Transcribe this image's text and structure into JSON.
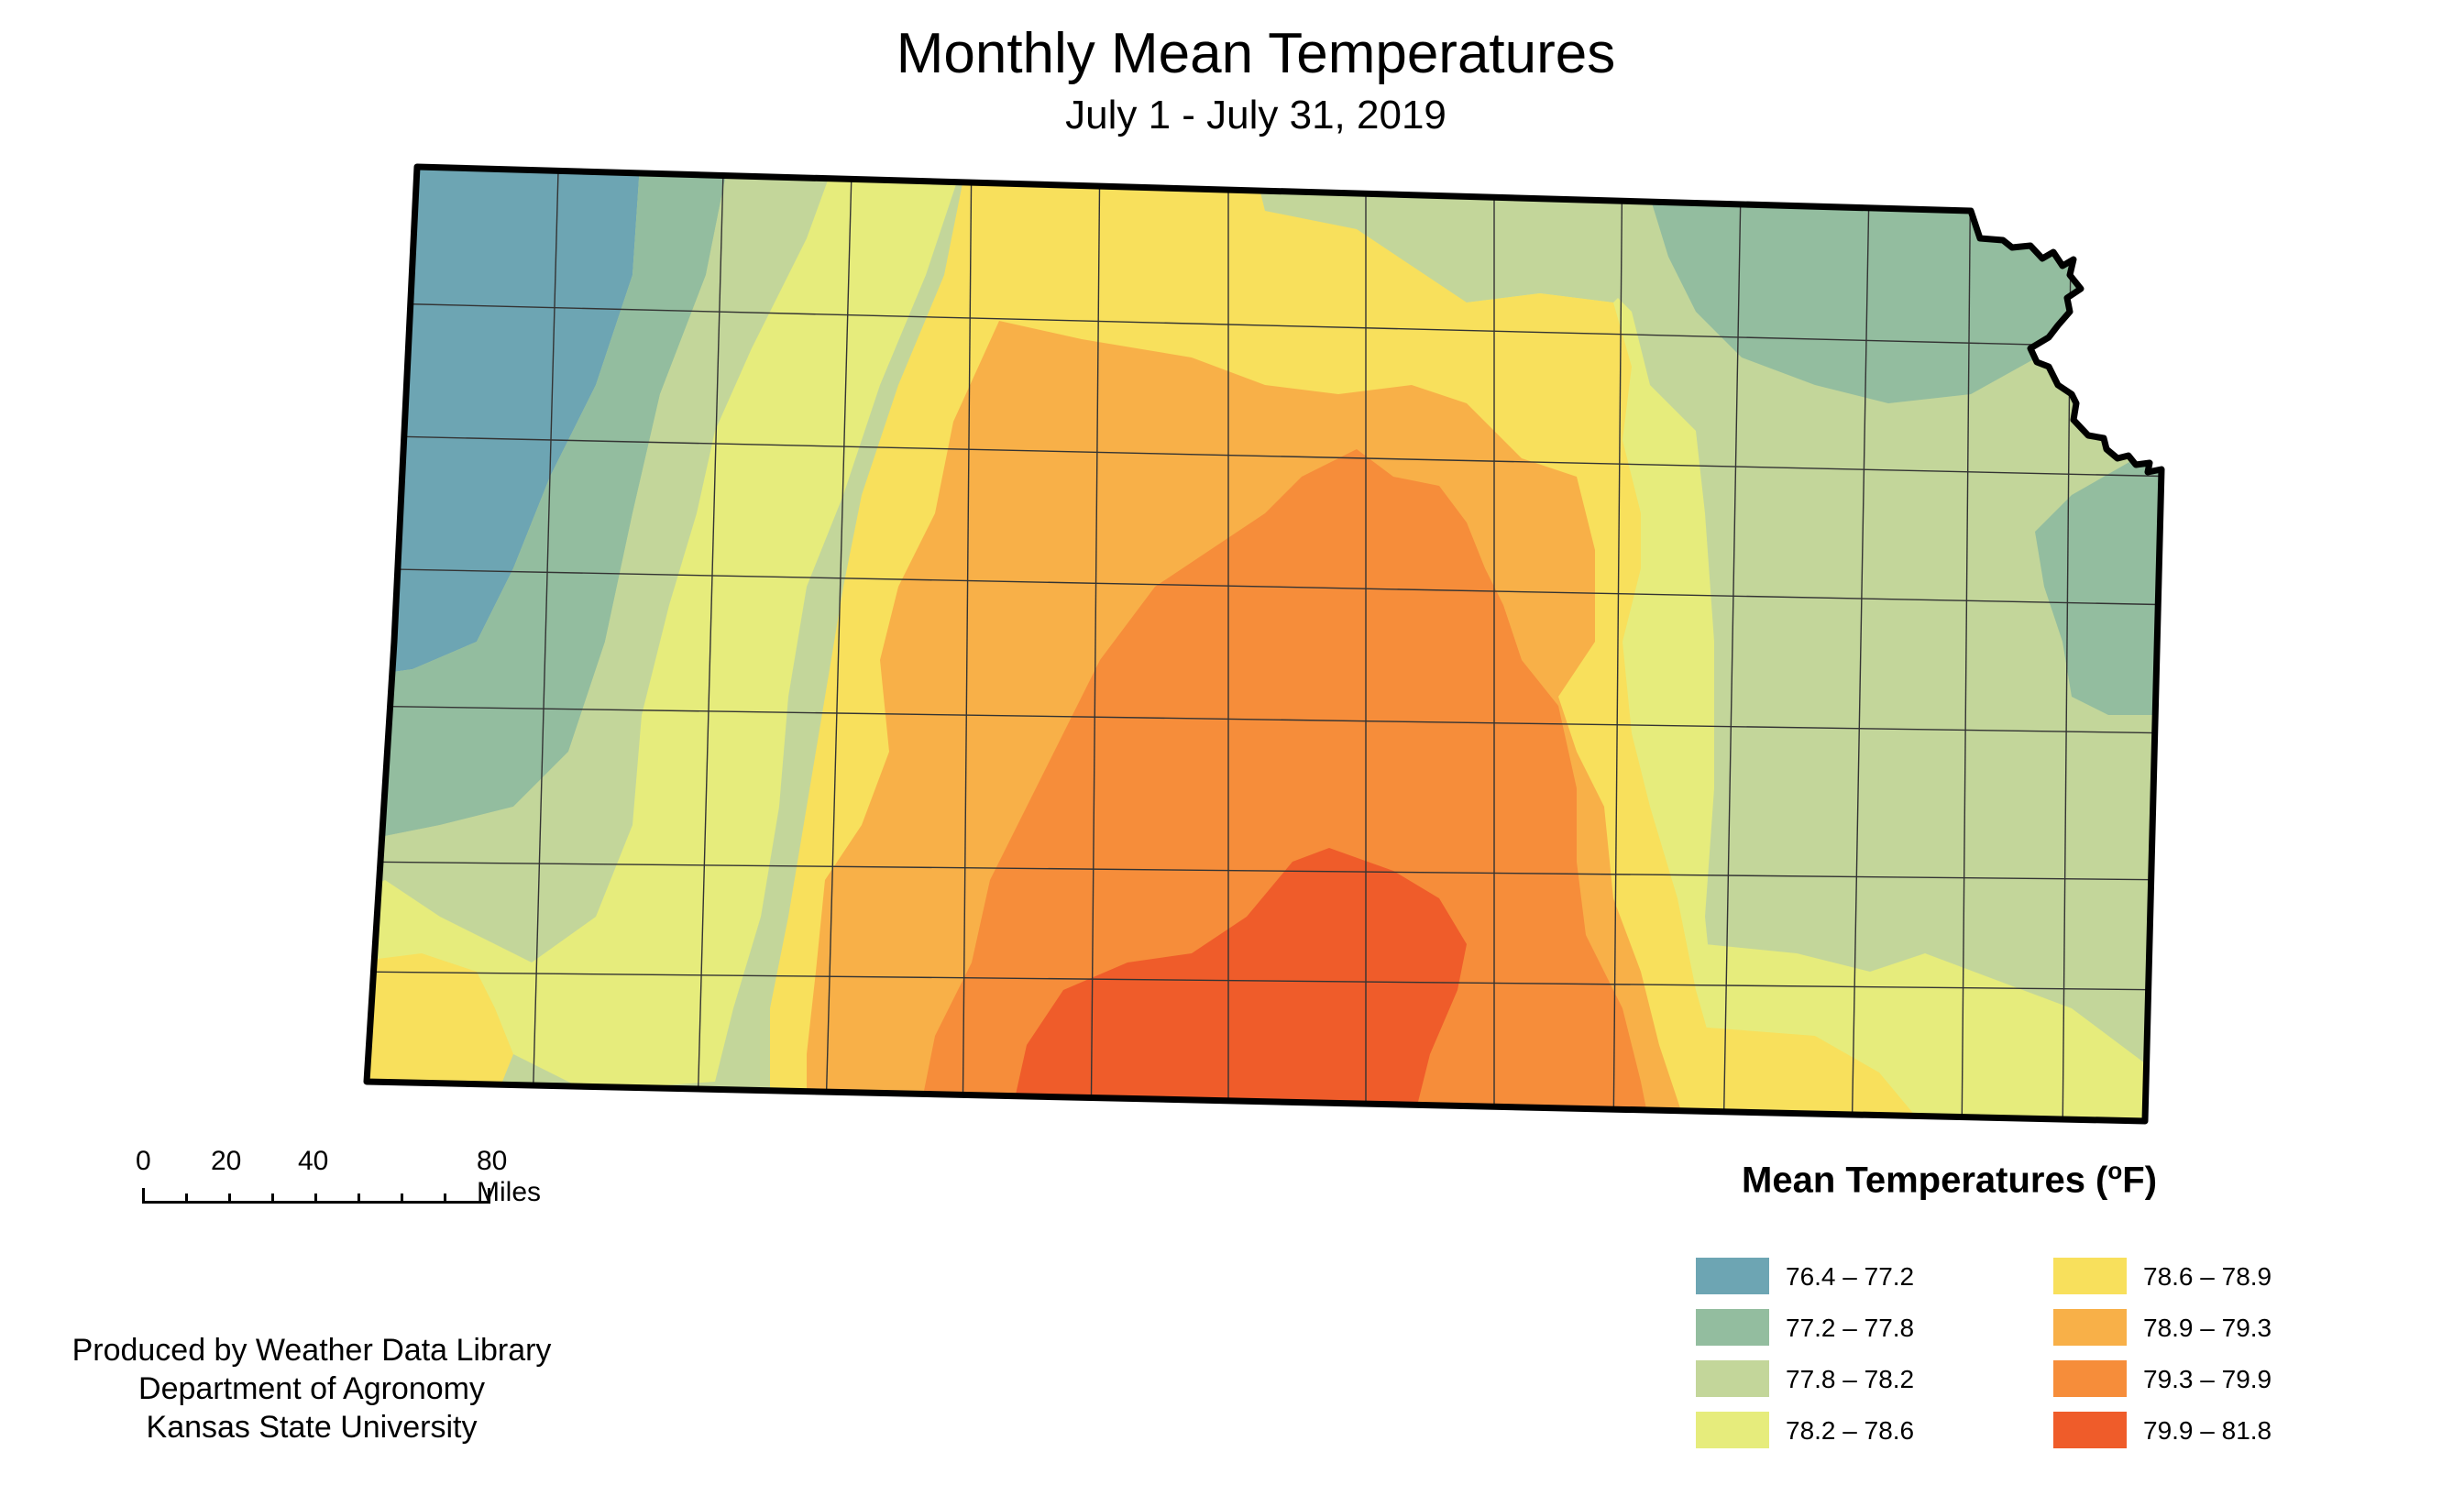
{
  "title": "Monthly Mean Temperatures",
  "subtitle": "July 1 - July 31, 2019",
  "scale": {
    "labels": [
      "0",
      "20",
      "40",
      "80 Miles"
    ]
  },
  "legend": {
    "title": "Mean Temperatures (",
    "unit_sup": "o",
    "unit_tail": "F)",
    "items": [
      {
        "label": "76.4 – 77.2",
        "color": "#6da5b3"
      },
      {
        "label": "77.2 – 77.8",
        "color": "#93bd9f"
      },
      {
        "label": "77.8 – 78.2",
        "color": "#c3d69a"
      },
      {
        "label": "78.2 – 78.6",
        "color": "#e6ec7c"
      },
      {
        "label": "78.6 – 78.9",
        "color": "#f8e05c"
      },
      {
        "label": "78.9 – 79.3",
        "color": "#f8b048"
      },
      {
        "label": "79.3 – 79.9",
        "color": "#f68d3a"
      },
      {
        "label": "79.9 – 81.8",
        "color": "#ef5c2a"
      }
    ]
  },
  "credit": {
    "line1": "Produced by Weather Data Library",
    "line2": "Department of Agronomy",
    "line3": "Kansas State University"
  }
}
